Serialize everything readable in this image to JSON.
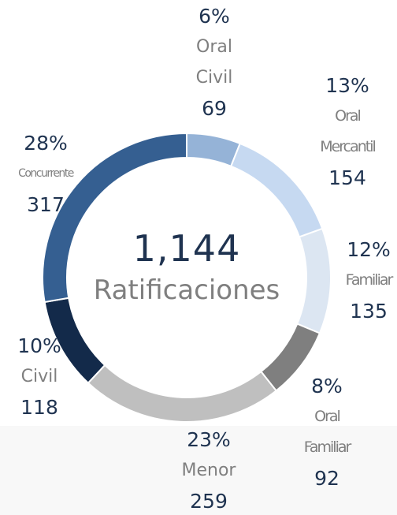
{
  "chart_data": {
    "type": "donut",
    "center_title": "1,144",
    "center_subtitle": "Ratificaciones",
    "categories": [
      "Oral Civil",
      "Oral Mercantil",
      "Familiar",
      "Oral Familiar",
      "Menor",
      "Civil",
      "Concurrente"
    ],
    "values": [
      69,
      154,
      135,
      92,
      259,
      118,
      317
    ],
    "percent_labels": [
      "6%",
      "13%",
      "12%",
      "8%",
      "23%",
      "10%",
      "28%"
    ],
    "colors": [
      "#95b3d7",
      "#c6d9f1",
      "#dce6f2",
      "#7f7f7f",
      "#bfbfbf",
      "#132a4a",
      "#355f91"
    ]
  }
}
